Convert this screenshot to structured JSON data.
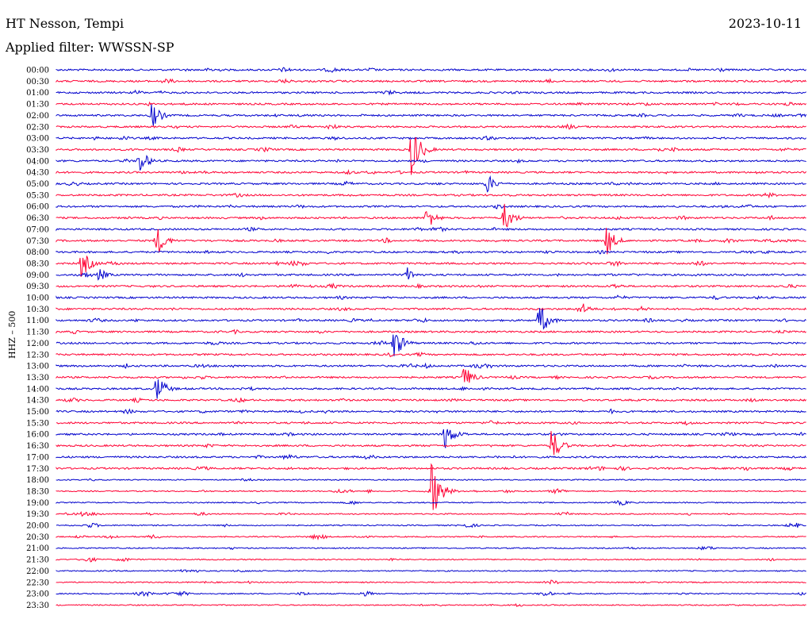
{
  "header": {
    "station": "HT Nesson, Tempi",
    "filter": "Applied filter: WWSSN-SP",
    "date": "2023-10-11"
  },
  "chart_data": {
    "type": "line",
    "title": "HT Nesson, Tempi",
    "subtitle": "Applied filter: WWSSN-SP",
    "date": "2023-10-11",
    "ylabel": "HHZ – 500",
    "colors": {
      "even": "#0000cc",
      "odd": "#ff0033"
    },
    "rows": [
      "00:00",
      "00:30",
      "01:00",
      "01:30",
      "02:00",
      "02:30",
      "03:00",
      "03:30",
      "04:00",
      "04:30",
      "05:00",
      "05:30",
      "06:00",
      "06:30",
      "07:00",
      "07:30",
      "08:00",
      "08:30",
      "09:00",
      "09:30",
      "10:00",
      "10:30",
      "11:00",
      "11:30",
      "12:00",
      "12:30",
      "13:00",
      "13:30",
      "14:00",
      "14:30",
      "15:00",
      "15:30",
      "16:00",
      "16:30",
      "17:00",
      "17:30",
      "18:00",
      "18:30",
      "19:00",
      "19:30",
      "20:00",
      "20:30",
      "21:00",
      "21:30",
      "22:00",
      "22:30",
      "23:00",
      "23:30"
    ],
    "row_duration_min": 30,
    "events": [
      {
        "row": 4,
        "minute": 3.8,
        "amplitude": 1.0
      },
      {
        "row": 7,
        "minute": 14.2,
        "amplitude": 2.0
      },
      {
        "row": 8,
        "minute": 3.3,
        "amplitude": 1.0
      },
      {
        "row": 10,
        "minute": 17.2,
        "amplitude": 0.8
      },
      {
        "row": 13,
        "minute": 14.8,
        "amplitude": 0.9
      },
      {
        "row": 13,
        "minute": 17.9,
        "amplitude": 1.1
      },
      {
        "row": 15,
        "minute": 4.0,
        "amplitude": 1.2
      },
      {
        "row": 15,
        "minute": 22.0,
        "amplitude": 1.1
      },
      {
        "row": 17,
        "minute": 1.0,
        "amplitude": 1.1
      },
      {
        "row": 18,
        "minute": 1.7,
        "amplitude": 0.5
      },
      {
        "row": 18,
        "minute": 14.0,
        "amplitude": 0.6
      },
      {
        "row": 21,
        "minute": 21.0,
        "amplitude": 0.5
      },
      {
        "row": 22,
        "minute": 19.3,
        "amplitude": 1.3
      },
      {
        "row": 24,
        "minute": 13.5,
        "amplitude": 1.2
      },
      {
        "row": 27,
        "minute": 16.3,
        "amplitude": 0.9
      },
      {
        "row": 28,
        "minute": 4.0,
        "amplitude": 1.1
      },
      {
        "row": 32,
        "minute": 15.5,
        "amplitude": 1.2
      },
      {
        "row": 33,
        "minute": 19.8,
        "amplitude": 1.3
      },
      {
        "row": 37,
        "minute": 15.0,
        "amplitude": 2.2
      }
    ]
  }
}
